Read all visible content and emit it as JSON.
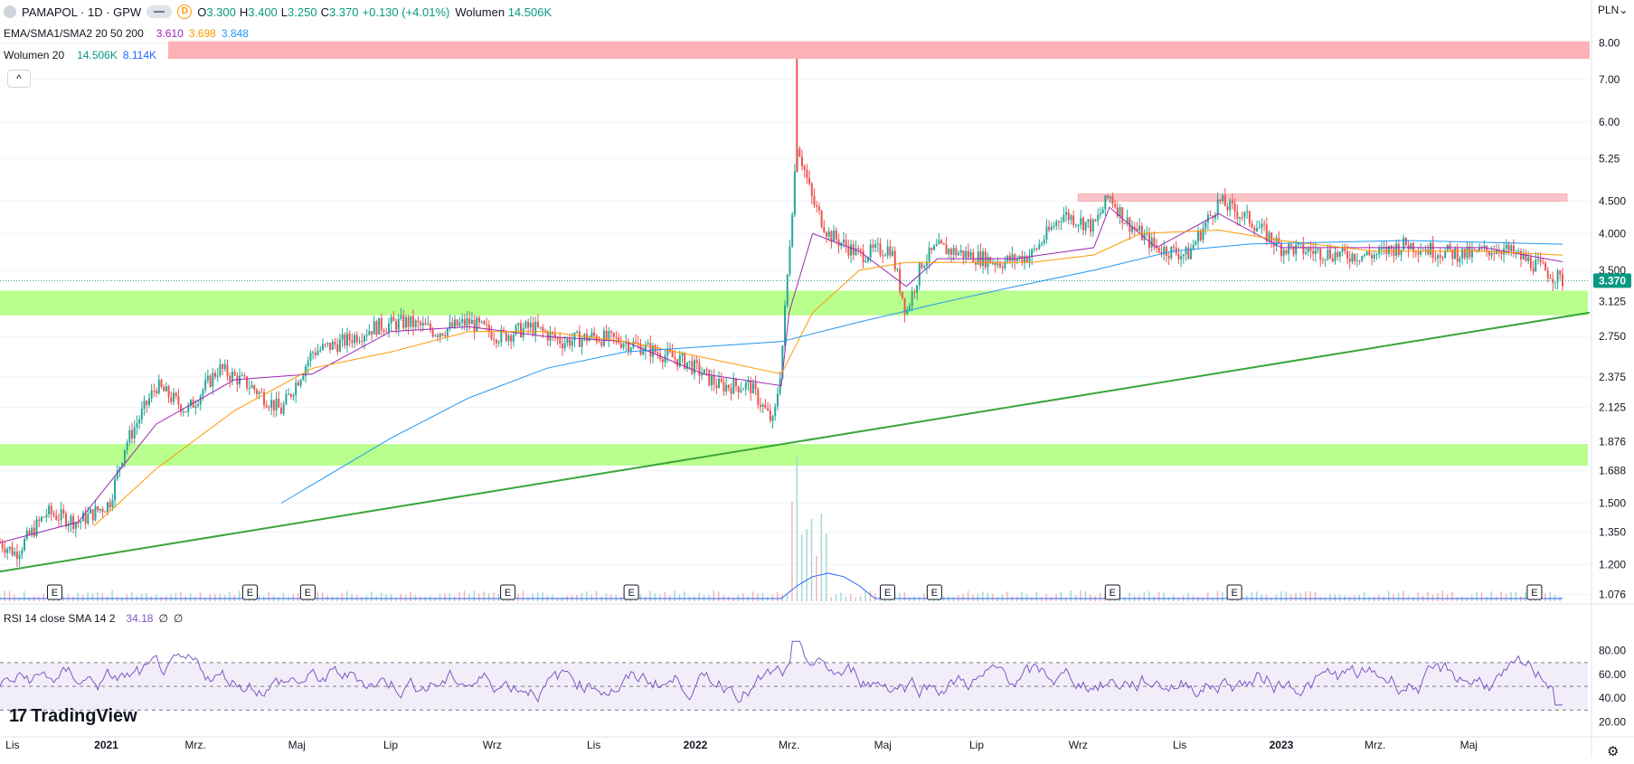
{
  "header": {
    "symbol": "PAMAPOL · 1D · GPW",
    "badge": "D",
    "o_label": "O",
    "o_value": "3.300",
    "h_label": "H",
    "h_value": "3.400",
    "l_label": "L",
    "l_value": "3.250",
    "c_label": "C",
    "c_value": "3.370",
    "change": "+0.130 (+4.01%)",
    "vol_label": "Wolumen",
    "vol_value": "14.506K",
    "ma_label": "EMA/SMA1/SMA2 20 50 200",
    "ma1": "3.610",
    "ma2": "3.698",
    "ma3": "3.848",
    "wol_label": "Wolumen 20",
    "wol1": "14.506K",
    "wol2": "8.114K",
    "rsi_label": "RSI 14 close SMA 14 2",
    "rsi_value": "34.18",
    "rsi_na1": "∅",
    "rsi_na2": "∅",
    "currency": "PLN",
    "collapse": "^",
    "logo": "TradingView",
    "logo_mark": "17"
  },
  "colors": {
    "up": "#26a69a",
    "down": "#ef5350",
    "ema": "#9c27b0",
    "sma1": "#ff9800",
    "sma2": "#2196f3",
    "support": "#b9ff8e",
    "resistance": "#fcb1b6",
    "trend": "#3aa53a",
    "rsi": "#7e57c2",
    "volume_ma": "#2962ff"
  },
  "chart_data": {
    "type": "candlestick",
    "scale": "log",
    "price_ylim": [
      1.05,
      8.2
    ],
    "price_ticks": [
      "8.00",
      "7.00",
      "6.00",
      "5.25",
      "4.500",
      "4.000",
      "3.500",
      "3.125",
      "2.750",
      "2.375",
      "2.125",
      "1.876",
      "1.688",
      "1.500",
      "1.350",
      "1.200",
      "1.076"
    ],
    "last_price": "3.370",
    "x_labels": [
      "Lis",
      "2021",
      "Mrz.",
      "Maj",
      "Lip",
      "Wrz",
      "Lis",
      "2022",
      "Mrz.",
      "Maj",
      "Lip",
      "Wrz",
      "Lis",
      "2023",
      "Mrz.",
      "Maj"
    ],
    "price_path": [
      [
        0,
        1.3
      ],
      [
        0.01,
        1.25
      ],
      [
        0.03,
        1.45
      ],
      [
        0.05,
        1.4
      ],
      [
        0.07,
        1.5
      ],
      [
        0.08,
        1.85
      ],
      [
        0.1,
        2.3
      ],
      [
        0.12,
        2.1
      ],
      [
        0.14,
        2.45
      ],
      [
        0.16,
        2.3
      ],
      [
        0.18,
        2.1
      ],
      [
        0.2,
        2.6
      ],
      [
        0.22,
        2.7
      ],
      [
        0.24,
        2.85
      ],
      [
        0.26,
        2.9
      ],
      [
        0.28,
        2.8
      ],
      [
        0.3,
        2.9
      ],
      [
        0.32,
        2.75
      ],
      [
        0.34,
        2.85
      ],
      [
        0.36,
        2.7
      ],
      [
        0.38,
        2.75
      ],
      [
        0.4,
        2.7
      ],
      [
        0.42,
        2.6
      ],
      [
        0.44,
        2.5
      ],
      [
        0.46,
        2.3
      ],
      [
        0.48,
        2.3
      ],
      [
        0.495,
        2.0
      ],
      [
        0.5,
        2.5
      ],
      [
        0.51,
        5.6
      ],
      [
        0.52,
        4.5
      ],
      [
        0.53,
        4.0
      ],
      [
        0.55,
        3.7
      ],
      [
        0.57,
        3.8
      ],
      [
        0.58,
        3.0
      ],
      [
        0.59,
        3.6
      ],
      [
        0.6,
        3.8
      ],
      [
        0.62,
        3.7
      ],
      [
        0.64,
        3.6
      ],
      [
        0.66,
        3.7
      ],
      [
        0.68,
        4.3
      ],
      [
        0.7,
        4.1
      ],
      [
        0.71,
        4.6
      ],
      [
        0.72,
        4.2
      ],
      [
        0.74,
        3.8
      ],
      [
        0.76,
        3.7
      ],
      [
        0.78,
        4.5
      ],
      [
        0.8,
        4.2
      ],
      [
        0.82,
        3.8
      ],
      [
        0.84,
        3.75
      ],
      [
        0.86,
        3.7
      ],
      [
        0.88,
        3.7
      ],
      [
        0.9,
        3.85
      ],
      [
        0.92,
        3.75
      ],
      [
        0.94,
        3.7
      ],
      [
        0.96,
        3.8
      ],
      [
        0.98,
        3.6
      ],
      [
        1.0,
        3.37
      ]
    ],
    "ma_paths": {
      "ema20": [
        [
          0,
          1.3
        ],
        [
          0.05,
          1.4
        ],
        [
          0.1,
          2.0
        ],
        [
          0.15,
          2.35
        ],
        [
          0.2,
          2.4
        ],
        [
          0.25,
          2.8
        ],
        [
          0.3,
          2.85
        ],
        [
          0.35,
          2.75
        ],
        [
          0.4,
          2.7
        ],
        [
          0.45,
          2.4
        ],
        [
          0.5,
          2.3
        ],
        [
          0.505,
          3.0
        ],
        [
          0.52,
          4.0
        ],
        [
          0.55,
          3.75
        ],
        [
          0.58,
          3.3
        ],
        [
          0.6,
          3.65
        ],
        [
          0.65,
          3.65
        ],
        [
          0.7,
          3.8
        ],
        [
          0.71,
          4.4
        ],
        [
          0.74,
          3.8
        ],
        [
          0.78,
          4.3
        ],
        [
          0.82,
          3.8
        ],
        [
          0.9,
          3.8
        ],
        [
          0.95,
          3.8
        ],
        [
          1.0,
          3.61
        ]
      ],
      "sma50": [
        [
          0.06,
          1.38
        ],
        [
          0.1,
          1.7
        ],
        [
          0.15,
          2.1
        ],
        [
          0.2,
          2.45
        ],
        [
          0.25,
          2.6
        ],
        [
          0.3,
          2.8
        ],
        [
          0.35,
          2.8
        ],
        [
          0.4,
          2.7
        ],
        [
          0.45,
          2.55
        ],
        [
          0.5,
          2.4
        ],
        [
          0.52,
          3.0
        ],
        [
          0.55,
          3.5
        ],
        [
          0.58,
          3.6
        ],
        [
          0.62,
          3.6
        ],
        [
          0.66,
          3.6
        ],
        [
          0.7,
          3.7
        ],
        [
          0.73,
          4.0
        ],
        [
          0.78,
          4.05
        ],
        [
          0.82,
          3.9
        ],
        [
          0.88,
          3.75
        ],
        [
          0.95,
          3.75
        ],
        [
          1.0,
          3.698
        ]
      ],
      "sma200": [
        [
          0.18,
          1.5
        ],
        [
          0.25,
          1.9
        ],
        [
          0.3,
          2.2
        ],
        [
          0.35,
          2.45
        ],
        [
          0.4,
          2.6
        ],
        [
          0.45,
          2.65
        ],
        [
          0.5,
          2.7
        ],
        [
          0.55,
          2.9
        ],
        [
          0.6,
          3.1
        ],
        [
          0.65,
          3.3
        ],
        [
          0.7,
          3.5
        ],
        [
          0.75,
          3.75
        ],
        [
          0.8,
          3.85
        ],
        [
          0.9,
          3.9
        ],
        [
          1.0,
          3.848
        ]
      ]
    },
    "support_zones": [
      [
        2.97,
        3.25
      ],
      [
        1.72,
        1.86
      ]
    ],
    "resistance_zones": [
      [
        7.55,
        8.05
      ],
      [
        4.5,
        4.62
      ]
    ],
    "trendline": [
      [
        0,
        1.17
      ],
      [
        1.0,
        3.0
      ]
    ],
    "rsi": {
      "ylim": [
        15,
        95
      ],
      "ticks": [
        "80.00",
        "60.00",
        "40.00",
        "20.00"
      ],
      "upper": 70,
      "lower": 30,
      "mid": 50,
      "last": 34.18
    },
    "earnings_markers": [
      "E",
      "E",
      "E",
      "E",
      "E",
      "E",
      "E",
      "E",
      "E",
      "E"
    ],
    "earnings_positions": [
      0.035,
      0.16,
      0.197,
      0.325,
      0.404,
      0.568,
      0.598,
      0.712,
      0.79,
      0.982
    ]
  }
}
